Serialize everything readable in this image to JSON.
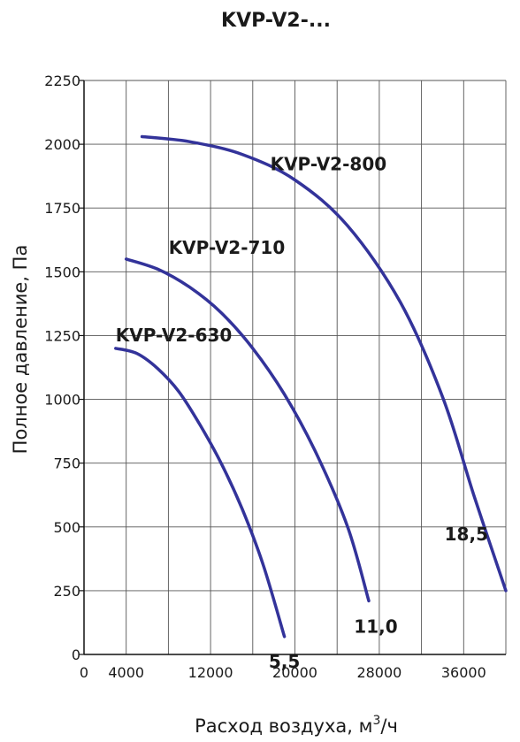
{
  "chart_data": {
    "type": "line",
    "title": "KVP-V2-...",
    "xlabel": "Расход воздуха, м",
    "xlabel_sup": "3",
    "xlabel_suffix": "/ч",
    "ylabel": "Полное давление, Па",
    "xlim": [
      0,
      40000
    ],
    "ylim": [
      0,
      2250
    ],
    "x_ticks": [
      0,
      4000,
      12000,
      20000,
      28000,
      36000
    ],
    "x_tick_labels": [
      "0",
      "4000",
      "12000",
      "20000",
      "28000",
      "36000"
    ],
    "y_ticks": [
      0,
      250,
      500,
      750,
      1000,
      1250,
      1500,
      1750,
      2000,
      2250
    ],
    "y_tick_labels": [
      "0",
      "250",
      "500",
      "750",
      "1000",
      "1250",
      "1500",
      "1750",
      "2000",
      "2250"
    ],
    "grid_x": [
      0,
      4000,
      8000,
      12000,
      16000,
      20000,
      24000,
      28000,
      32000,
      36000,
      40000
    ],
    "grid_y": [
      0,
      250,
      500,
      750,
      1000,
      1250,
      1500,
      1750,
      2000,
      2250
    ],
    "grid": true,
    "line_color": "#33339a",
    "series": [
      {
        "name": "KVP-V2-630",
        "power": "5,5",
        "points": [
          [
            3000,
            1200
          ],
          [
            5000,
            1180
          ],
          [
            7000,
            1120
          ],
          [
            9000,
            1030
          ],
          [
            11000,
            900
          ],
          [
            13000,
            750
          ],
          [
            15000,
            570
          ],
          [
            17000,
            350
          ],
          [
            19000,
            70
          ]
        ]
      },
      {
        "name": "KVP-V2-710",
        "power": "11,0",
        "points": [
          [
            4000,
            1550
          ],
          [
            7000,
            1510
          ],
          [
            10000,
            1440
          ],
          [
            13000,
            1340
          ],
          [
            16000,
            1200
          ],
          [
            19000,
            1020
          ],
          [
            22000,
            790
          ],
          [
            25000,
            500
          ],
          [
            27000,
            210
          ]
        ]
      },
      {
        "name": "KVP-V2-800",
        "power": "18,5",
        "points": [
          [
            5500,
            2030
          ],
          [
            10000,
            2010
          ],
          [
            15000,
            1960
          ],
          [
            20000,
            1860
          ],
          [
            25000,
            1680
          ],
          [
            30000,
            1380
          ],
          [
            34000,
            1010
          ],
          [
            37000,
            620
          ],
          [
            40000,
            250
          ]
        ]
      }
    ]
  }
}
